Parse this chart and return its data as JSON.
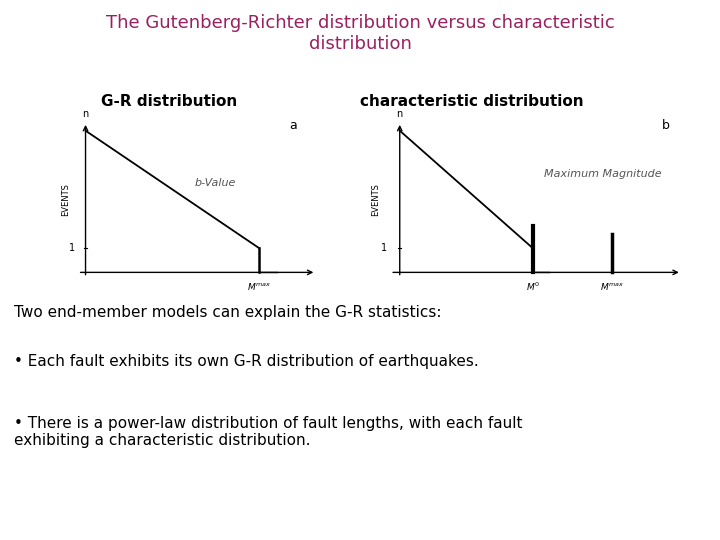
{
  "title_line1": "The Gutenberg-Richter distribution versus characteristic",
  "title_line2": "distribution",
  "title_color": "#9b2060",
  "title_fontsize": 13,
  "label_gr": "G-R distribution",
  "label_char": "characteristic distribution",
  "label_fontsize": 11,
  "label_color": "#000000",
  "body_text_1": "Two end-member models can explain the G-R statistics:",
  "body_text_2": "• Each fault exhibits its own G-R distribution of earthquakes.",
  "body_text_3": "• There is a power-law distribution of fault lengths, with each fault\nexhibiting a characteristic distribution.",
  "body_fontsize": 11,
  "body_color": "#000000",
  "background_color": "#ffffff",
  "image_bg": "#e4e2dc"
}
